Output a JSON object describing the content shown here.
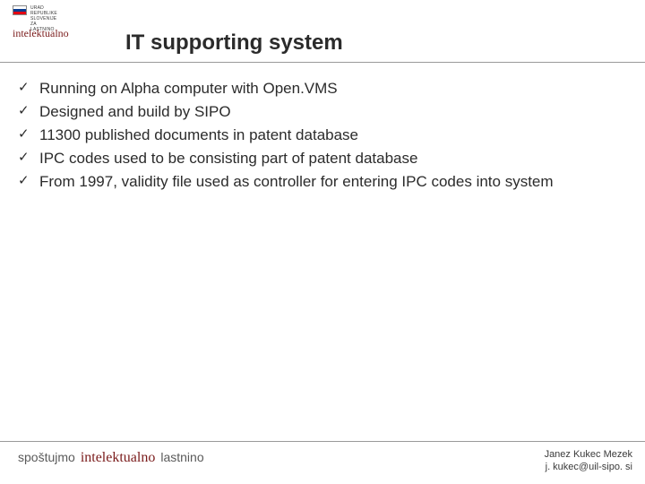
{
  "header": {
    "emblem_line1": "URAD",
    "emblem_line2": "REPUBLIKE",
    "emblem_line3": "SLOVENIJE",
    "emblem_line4": "ZA",
    "emblem_line5": "LASTNINO",
    "script_word": "intelektualno"
  },
  "title": "IT supporting system",
  "bullets": [
    "Running on Alpha computer with Open.VMS",
    "Designed and build by SIPO",
    "11300 published documents in patent database",
    "IPC codes used to be consisting part of patent database",
    "From 1997, validity file used as controller for entering IPC codes into system"
  ],
  "bullet_marker": "✓",
  "footer": {
    "word1": "spoštujmo",
    "word2": "intelektualno",
    "word3": "lastnino",
    "author": "Janez Kukec Mezek",
    "email": "j. kukec@uil-sipo. si"
  },
  "colors": {
    "text": "#2b2b2b",
    "rule": "#9a9a9a",
    "script": "#7a1b1b",
    "background": "#ffffff"
  },
  "fonts": {
    "title_size_pt": 24,
    "body_size_pt": 17,
    "footer_author_size_pt": 11
  }
}
